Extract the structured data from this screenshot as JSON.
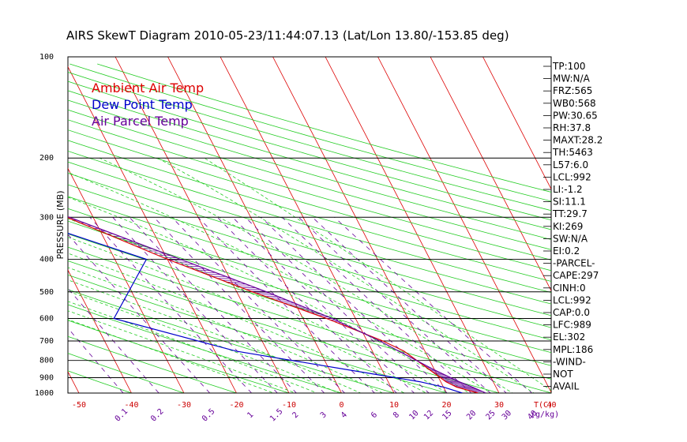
{
  "chart_data": {
    "type": "line",
    "title": "AIRS SkewT Diagram 2010-05-23/11:44:07.13 (Lat/Lon 13.80/-153.85 deg)",
    "ylabel": "PRESSURE (MB)",
    "ylim": [
      1000,
      100
    ],
    "y_scale": "log",
    "y_ticks": [
      "100",
      "200",
      "300",
      "400",
      "500",
      "600",
      "700",
      "800",
      "900",
      "1000"
    ],
    "bottom_ticks": [
      "-50",
      "-40",
      "-30",
      "-20",
      "-10",
      "0",
      "10",
      "20",
      "30",
      "40"
    ],
    "bottom_unit": "T(C)",
    "top_ticks": [
      "-120",
      "-110",
      "-100",
      "-90",
      "-80",
      "-70",
      "-60",
      "-50",
      "-40"
    ],
    "mixing_ratio_labels": [
      "0.1",
      "0.2",
      "0.5",
      "1",
      "1.5",
      "2",
      "3",
      "4",
      "6",
      "8",
      "10",
      "12",
      "15",
      "20",
      "25",
      "30",
      "40"
    ],
    "mixing_ratio_unit": "(g/kg)",
    "grid": true,
    "legend_position": "top-left",
    "series": [
      {
        "name": "Ambient Air Temp",
        "color": "#dd0000",
        "points": [
          {
            "p": 1000,
            "t": 26.0
          },
          {
            "p": 960,
            "t": 22.5
          },
          {
            "p": 925,
            "t": 21.0
          },
          {
            "p": 850,
            "t": 19.0
          },
          {
            "p": 750,
            "t": 16.0
          },
          {
            "p": 700,
            "t": 13.0
          },
          {
            "p": 600,
            "t": 4.5
          },
          {
            "p": 500,
            "t": -7.0
          },
          {
            "p": 400,
            "t": -20.0
          },
          {
            "p": 300,
            "t": -35.0
          },
          {
            "p": 250,
            "t": -45.0
          },
          {
            "p": 200,
            "t": -57.0
          },
          {
            "p": 180,
            "t": -63.0
          },
          {
            "p": 150,
            "t": -74.0
          },
          {
            "p": 140,
            "t": -80.0
          },
          {
            "p": 120,
            "t": -83.0
          },
          {
            "p": 100,
            "t": -90.0
          }
        ]
      },
      {
        "name": "Dew Point Temp",
        "color": "#0000cc",
        "points": [
          {
            "p": 1000,
            "t": 23.0
          },
          {
            "p": 960,
            "t": 20.0
          },
          {
            "p": 925,
            "t": 16.0
          },
          {
            "p": 850,
            "t": 3.0
          },
          {
            "p": 750,
            "t": -16.0
          },
          {
            "p": 600,
            "t": -36.0
          },
          {
            "p": 400,
            "t": -24.0
          },
          {
            "p": 300,
            "t": -44.0
          },
          {
            "p": 200,
            "t": -64.0
          },
          {
            "p": 150,
            "t": -84.0
          },
          {
            "p": 100,
            "t": -105.0
          }
        ]
      },
      {
        "name": "Air Parcel Temp",
        "color": "#660099",
        "points": [
          {
            "p": 1000,
            "t": 27.5
          },
          {
            "p": 960,
            "t": 25.5
          },
          {
            "p": 925,
            "t": 23.5
          },
          {
            "p": 850,
            "t": 19.8
          },
          {
            "p": 750,
            "t": 15.0
          },
          {
            "p": 700,
            "t": 12.4
          },
          {
            "p": 600,
            "t": 5.6
          },
          {
            "p": 500,
            "t": -4.3
          },
          {
            "p": 400,
            "t": -17.5
          },
          {
            "p": 300,
            "t": -34.5
          },
          {
            "p": 250,
            "t": -46.0
          },
          {
            "p": 200,
            "t": -59.0
          },
          {
            "p": 150,
            "t": -80.0
          },
          {
            "p": 120,
            "t": -95.0
          },
          {
            "p": 100,
            "t": -108.0
          }
        ]
      }
    ]
  },
  "stats": [
    "TP:100",
    "MW:N/A",
    "FRZ:565",
    "WB0:568",
    "PW:30.65",
    "RH:37.8",
    "MAXT:28.2",
    "TH:5463",
    "L57:6.0",
    "LCL:992",
    "LI:-1.2",
    "SI:11.1",
    "TT:29.7",
    "KI:269",
    "SW:N/A",
    "EI:0.2",
    "-PARCEL-",
    "CAPE:297",
    "CINH:0",
    "LCL:992",
    "CAP:0.0",
    "LFC:989",
    "EL:302",
    "MPL:186",
    "-WIND-",
    "NOT",
    "AVAIL"
  ]
}
